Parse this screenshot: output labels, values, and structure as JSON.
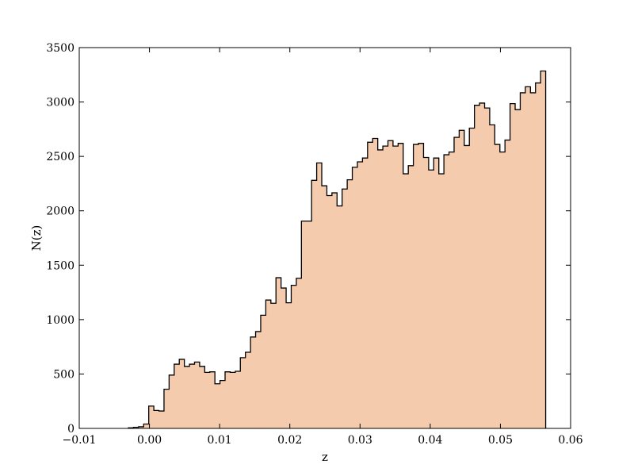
{
  "chart_data": {
    "type": "histogram",
    "xlabel": "z",
    "ylabel": "N(z)",
    "xlim": [
      -0.01,
      0.06
    ],
    "ylim": [
      0,
      3500
    ],
    "xticks": [
      -0.01,
      0.0,
      0.01,
      0.02,
      0.03,
      0.04,
      0.05,
      0.06
    ],
    "xtick_labels": [
      "−0.01",
      "0.00",
      "0.01",
      "0.02",
      "0.03",
      "0.04",
      "0.05",
      "0.06"
    ],
    "yticks": [
      0,
      500,
      1000,
      1500,
      2000,
      2500,
      3000,
      3500
    ],
    "ytick_labels": [
      "0",
      "500",
      "1000",
      "1500",
      "2000",
      "2500",
      "3000",
      "3500"
    ],
    "fill_color": "#f5cbae",
    "edge_color": "#000000",
    "bin_width": 0.000725,
    "bin_edges_start": -0.003,
    "counts": [
      5,
      10,
      15,
      40,
      205,
      165,
      160,
      360,
      490,
      590,
      635,
      570,
      590,
      610,
      570,
      515,
      520,
      410,
      440,
      520,
      515,
      525,
      650,
      700,
      840,
      890,
      1040,
      1180,
      1150,
      1385,
      1290,
      1155,
      1315,
      1380,
      1905,
      1905,
      2280,
      2440,
      2230,
      2140,
      2165,
      2045,
      2200,
      2285,
      2400,
      2450,
      2485,
      2630,
      2665,
      2560,
      2595,
      2645,
      2595,
      2620,
      2340,
      2415,
      2610,
      2620,
      2490,
      2375,
      2485,
      2340,
      2515,
      2540,
      2675,
      2740,
      2600,
      2760,
      2970,
      2990,
      2945,
      2790,
      2610,
      2540,
      2650,
      2985,
      2930,
      3085,
      3140,
      3085,
      3175,
      3285
    ]
  }
}
